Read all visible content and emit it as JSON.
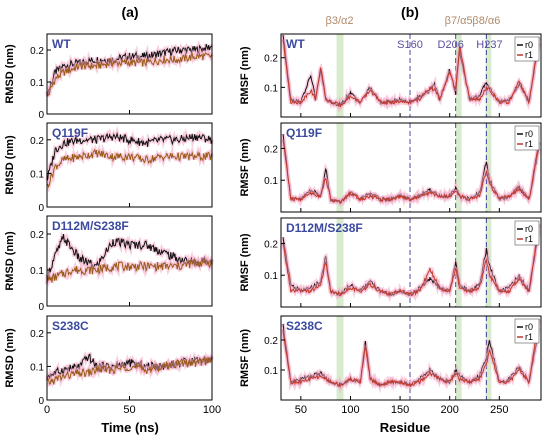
{
  "figure": {
    "panel_a_letter": "(a)",
    "panel_b_letter": "(b)",
    "x_label_left": "Time (ns)",
    "x_label_right": "Residue",
    "y_label_left": "RMSD (nm)",
    "y_label_right": "RMSF (nm)",
    "legend_entries": [
      "r0",
      "r1"
    ],
    "colors": {
      "r0": "#111111",
      "r1": "#c0392b",
      "rmsd_r1": "#9a5a1a",
      "glow": "#f4a7c6",
      "band": "#cfe6c0",
      "vline": "#4b4ba0",
      "annot_band": "#b08a6a",
      "annot_line": "#5a4ea0",
      "title_blue": "#3b4a9e"
    },
    "band_annotations": [
      "β3/α2",
      "β7/α5",
      "β8/α6"
    ],
    "line_annotations": [
      "S160",
      "D206",
      "H237"
    ]
  },
  "chart_data": [
    {
      "type": "line",
      "panel": "a",
      "title": "WT",
      "xlim": [
        0,
        100
      ],
      "ylim": [
        0,
        0.25
      ],
      "yticks": [
        0,
        0.1,
        0.2
      ],
      "xticks": [
        0,
        50,
        100
      ],
      "xlabel": "Time (ns)",
      "ylabel": "RMSD (nm)",
      "series": [
        {
          "name": "r0",
          "x": [
            0,
            5,
            10,
            20,
            30,
            40,
            50,
            60,
            70,
            80,
            90,
            100
          ],
          "values": [
            0.06,
            0.13,
            0.15,
            0.16,
            0.17,
            0.17,
            0.18,
            0.18,
            0.19,
            0.2,
            0.2,
            0.21
          ]
        },
        {
          "name": "r1",
          "x": [
            0,
            5,
            10,
            20,
            30,
            40,
            50,
            60,
            70,
            80,
            90,
            100
          ],
          "values": [
            0.05,
            0.11,
            0.13,
            0.15,
            0.15,
            0.16,
            0.16,
            0.16,
            0.17,
            0.17,
            0.18,
            0.18
          ]
        }
      ]
    },
    {
      "type": "line",
      "panel": "a",
      "title": "Q119F",
      "xlim": [
        0,
        100
      ],
      "ylim": [
        0,
        0.25
      ],
      "yticks": [
        0,
        0.1,
        0.2
      ],
      "xticks": [
        0,
        50,
        100
      ],
      "xlabel": "Time (ns)",
      "ylabel": "RMSD (nm)",
      "series": [
        {
          "name": "r0",
          "x": [
            0,
            5,
            10,
            20,
            30,
            40,
            50,
            60,
            70,
            80,
            90,
            100
          ],
          "values": [
            0.08,
            0.17,
            0.19,
            0.2,
            0.2,
            0.21,
            0.2,
            0.19,
            0.2,
            0.2,
            0.21,
            0.2
          ]
        },
        {
          "name": "r1",
          "x": [
            0,
            5,
            10,
            20,
            30,
            40,
            50,
            60,
            70,
            80,
            90,
            100
          ],
          "values": [
            0.06,
            0.12,
            0.14,
            0.15,
            0.16,
            0.15,
            0.15,
            0.14,
            0.15,
            0.15,
            0.15,
            0.15
          ]
        }
      ]
    },
    {
      "type": "line",
      "panel": "a",
      "title": "D112M/S238F",
      "xlim": [
        0,
        100
      ],
      "ylim": [
        0,
        0.25
      ],
      "yticks": [
        0,
        0.1,
        0.2
      ],
      "xticks": [
        0,
        50,
        100
      ],
      "xlabel": "Time (ns)",
      "ylabel": "RMSD (nm)",
      "series": [
        {
          "name": "r0",
          "x": [
            0,
            5,
            10,
            15,
            20,
            30,
            40,
            50,
            60,
            70,
            80,
            90,
            100
          ],
          "values": [
            0.08,
            0.14,
            0.19,
            0.16,
            0.13,
            0.11,
            0.18,
            0.17,
            0.17,
            0.15,
            0.13,
            0.12,
            0.13
          ]
        },
        {
          "name": "r1",
          "x": [
            0,
            5,
            10,
            15,
            20,
            30,
            40,
            50,
            60,
            70,
            80,
            90,
            100
          ],
          "values": [
            0.07,
            0.08,
            0.09,
            0.1,
            0.1,
            0.1,
            0.11,
            0.11,
            0.11,
            0.11,
            0.11,
            0.12,
            0.12
          ]
        }
      ]
    },
    {
      "type": "line",
      "panel": "a",
      "title": "S238C",
      "xlim": [
        0,
        100
      ],
      "ylim": [
        0,
        0.25
      ],
      "yticks": [
        0,
        0.1,
        0.2
      ],
      "xticks": [
        0,
        50,
        100
      ],
      "xlabel": "Time (ns)",
      "ylabel": "RMSD (nm)",
      "series": [
        {
          "name": "r0",
          "x": [
            0,
            10,
            20,
            25,
            30,
            40,
            50,
            60,
            70,
            80,
            90,
            100
          ],
          "values": [
            0.07,
            0.09,
            0.1,
            0.13,
            0.1,
            0.1,
            0.11,
            0.1,
            0.1,
            0.11,
            0.12,
            0.12
          ]
        },
        {
          "name": "r1",
          "x": [
            0,
            10,
            20,
            25,
            30,
            40,
            50,
            60,
            70,
            80,
            90,
            100
          ],
          "values": [
            0.05,
            0.07,
            0.08,
            0.08,
            0.09,
            0.09,
            0.1,
            0.09,
            0.1,
            0.11,
            0.11,
            0.12
          ]
        }
      ]
    },
    {
      "type": "line",
      "panel": "b",
      "title": "WT",
      "xlim": [
        30,
        292
      ],
      "ylim": [
        0,
        0.28
      ],
      "yticks": [
        0.1,
        0.2
      ],
      "xticks": [
        50,
        100,
        150,
        200,
        250
      ],
      "xlabel": "Residue",
      "ylabel": "RMSF (nm)",
      "series": [
        {
          "name": "r0",
          "x": [
            32,
            40,
            50,
            60,
            65,
            70,
            75,
            80,
            90,
            100,
            110,
            120,
            130,
            140,
            150,
            160,
            170,
            180,
            185,
            190,
            200,
            206,
            210,
            220,
            230,
            237,
            240,
            250,
            260,
            270,
            280,
            290
          ],
          "values": [
            0.28,
            0.06,
            0.05,
            0.14,
            0.06,
            0.16,
            0.06,
            0.05,
            0.04,
            0.08,
            0.05,
            0.1,
            0.05,
            0.05,
            0.06,
            0.05,
            0.07,
            0.09,
            0.11,
            0.06,
            0.16,
            0.08,
            0.22,
            0.06,
            0.07,
            0.12,
            0.1,
            0.05,
            0.06,
            0.11,
            0.05,
            0.25
          ]
        },
        {
          "name": "r1",
          "x": [
            32,
            40,
            50,
            60,
            65,
            70,
            75,
            80,
            90,
            100,
            110,
            120,
            130,
            140,
            150,
            160,
            170,
            180,
            185,
            190,
            200,
            206,
            210,
            220,
            230,
            237,
            240,
            250,
            260,
            270,
            280,
            290
          ],
          "values": [
            0.26,
            0.05,
            0.05,
            0.09,
            0.06,
            0.17,
            0.06,
            0.05,
            0.04,
            0.07,
            0.05,
            0.09,
            0.05,
            0.05,
            0.05,
            0.05,
            0.06,
            0.1,
            0.09,
            0.06,
            0.15,
            0.09,
            0.24,
            0.06,
            0.06,
            0.1,
            0.09,
            0.05,
            0.05,
            0.12,
            0.05,
            0.27
          ]
        }
      ]
    },
    {
      "type": "line",
      "panel": "b",
      "title": "Q119F",
      "xlim": [
        30,
        292
      ],
      "ylim": [
        0,
        0.28
      ],
      "yticks": [
        0.1,
        0.2
      ],
      "xticks": [
        50,
        100,
        150,
        200,
        250
      ],
      "xlabel": "Residue",
      "ylabel": "RMSF (nm)",
      "series": [
        {
          "name": "r0",
          "x": [
            32,
            40,
            50,
            60,
            70,
            75,
            80,
            90,
            100,
            110,
            120,
            130,
            140,
            150,
            160,
            170,
            180,
            190,
            200,
            206,
            210,
            220,
            230,
            237,
            240,
            250,
            260,
            270,
            280,
            290
          ],
          "values": [
            0.25,
            0.04,
            0.04,
            0.07,
            0.05,
            0.14,
            0.04,
            0.03,
            0.06,
            0.04,
            0.06,
            0.04,
            0.04,
            0.05,
            0.04,
            0.05,
            0.07,
            0.05,
            0.05,
            0.08,
            0.05,
            0.04,
            0.06,
            0.16,
            0.1,
            0.04,
            0.05,
            0.08,
            0.04,
            0.2
          ]
        },
        {
          "name": "r1",
          "x": [
            32,
            40,
            50,
            60,
            70,
            75,
            80,
            90,
            100,
            110,
            120,
            130,
            140,
            150,
            160,
            170,
            180,
            190,
            200,
            206,
            210,
            220,
            230,
            237,
            240,
            250,
            260,
            270,
            280,
            290
          ],
          "values": [
            0.23,
            0.04,
            0.04,
            0.06,
            0.05,
            0.11,
            0.04,
            0.03,
            0.06,
            0.04,
            0.05,
            0.04,
            0.04,
            0.05,
            0.04,
            0.05,
            0.06,
            0.05,
            0.05,
            0.07,
            0.05,
            0.04,
            0.05,
            0.13,
            0.09,
            0.04,
            0.05,
            0.07,
            0.04,
            0.22
          ]
        }
      ]
    },
    {
      "type": "line",
      "panel": "b",
      "title": "D112M/S238F",
      "xlim": [
        30,
        292
      ],
      "ylim": [
        0,
        0.28
      ],
      "yticks": [
        0.1,
        0.2
      ],
      "xticks": [
        50,
        100,
        150,
        200,
        250
      ],
      "xlabel": "Residue",
      "ylabel": "RMSF (nm)",
      "series": [
        {
          "name": "r0",
          "x": [
            32,
            40,
            50,
            60,
            70,
            75,
            80,
            90,
            100,
            110,
            120,
            130,
            140,
            150,
            160,
            170,
            180,
            190,
            200,
            206,
            210,
            220,
            230,
            237,
            240,
            250,
            260,
            270,
            280,
            290
          ],
          "values": [
            0.22,
            0.07,
            0.05,
            0.06,
            0.08,
            0.16,
            0.05,
            0.04,
            0.07,
            0.05,
            0.08,
            0.05,
            0.04,
            0.05,
            0.04,
            0.06,
            0.09,
            0.06,
            0.05,
            0.14,
            0.07,
            0.05,
            0.07,
            0.18,
            0.13,
            0.05,
            0.06,
            0.1,
            0.05,
            0.24
          ]
        },
        {
          "name": "r1",
          "x": [
            32,
            40,
            50,
            60,
            70,
            75,
            80,
            90,
            100,
            110,
            120,
            130,
            140,
            150,
            160,
            170,
            180,
            190,
            200,
            206,
            210,
            220,
            230,
            237,
            240,
            250,
            260,
            270,
            280,
            290
          ],
          "values": [
            0.2,
            0.05,
            0.05,
            0.05,
            0.07,
            0.14,
            0.05,
            0.04,
            0.06,
            0.05,
            0.07,
            0.05,
            0.04,
            0.05,
            0.04,
            0.05,
            0.12,
            0.06,
            0.05,
            0.12,
            0.06,
            0.05,
            0.06,
            0.15,
            0.1,
            0.05,
            0.05,
            0.09,
            0.05,
            0.26
          ]
        }
      ]
    },
    {
      "type": "line",
      "panel": "b",
      "title": "S238C",
      "xlim": [
        30,
        292
      ],
      "ylim": [
        0,
        0.28
      ],
      "yticks": [
        0.1,
        0.2
      ],
      "xticks": [
        50,
        100,
        150,
        200,
        250
      ],
      "xlabel": "Residue",
      "ylabel": "RMSF (nm)",
      "series": [
        {
          "name": "r0",
          "x": [
            32,
            40,
            50,
            60,
            70,
            80,
            90,
            100,
            110,
            115,
            120,
            130,
            140,
            150,
            160,
            170,
            180,
            190,
            200,
            206,
            210,
            220,
            230,
            237,
            240,
            250,
            260,
            270,
            280,
            290
          ],
          "values": [
            0.25,
            0.06,
            0.07,
            0.08,
            0.09,
            0.06,
            0.05,
            0.07,
            0.06,
            0.2,
            0.07,
            0.05,
            0.06,
            0.06,
            0.05,
            0.07,
            0.1,
            0.07,
            0.06,
            0.1,
            0.08,
            0.06,
            0.08,
            0.14,
            0.2,
            0.06,
            0.07,
            0.11,
            0.06,
            0.24
          ]
        },
        {
          "name": "r1",
          "x": [
            32,
            40,
            50,
            60,
            70,
            80,
            90,
            100,
            110,
            115,
            120,
            130,
            140,
            150,
            160,
            170,
            180,
            190,
            200,
            206,
            210,
            220,
            230,
            237,
            240,
            250,
            260,
            270,
            280,
            290
          ],
          "values": [
            0.23,
            0.06,
            0.06,
            0.07,
            0.08,
            0.06,
            0.05,
            0.07,
            0.06,
            0.18,
            0.07,
            0.05,
            0.06,
            0.06,
            0.05,
            0.06,
            0.09,
            0.07,
            0.06,
            0.09,
            0.07,
            0.06,
            0.07,
            0.12,
            0.17,
            0.06,
            0.06,
            0.1,
            0.06,
            0.27
          ]
        }
      ]
    }
  ]
}
